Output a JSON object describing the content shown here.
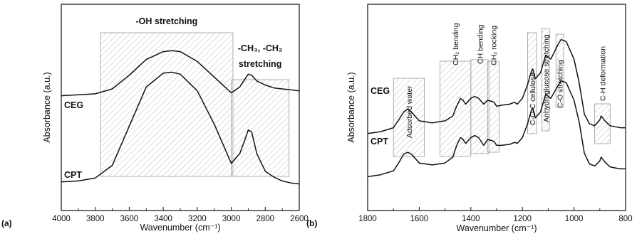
{
  "panel_labels": {
    "a": "(a)",
    "b": "(b)"
  },
  "chart_data": [
    {
      "type": "line",
      "panel": "(a)",
      "xlabel": "Wavenumber (cm⁻¹)",
      "ylabel": "Absorbance (a.u.)",
      "xlim": [
        4000,
        2600
      ],
      "x_reversed": true,
      "x_ticks": [
        "4000",
        "3800",
        "3600",
        "3400",
        "3200",
        "3000",
        "2800",
        "2600"
      ],
      "y_ticks": false,
      "series": [
        {
          "name": "CEG",
          "x": [
            4000,
            3900,
            3800,
            3700,
            3600,
            3500,
            3400,
            3350,
            3300,
            3200,
            3100,
            3000,
            2950,
            2920,
            2900,
            2880,
            2850,
            2800,
            2750,
            2700,
            2650,
            2600
          ],
          "y": [
            0.535,
            0.54,
            0.545,
            0.57,
            0.64,
            0.72,
            0.76,
            0.765,
            0.76,
            0.71,
            0.63,
            0.55,
            0.58,
            0.62,
            0.645,
            0.64,
            0.61,
            0.59,
            0.575,
            0.57,
            0.565,
            0.56
          ]
        },
        {
          "name": "CPT",
          "x": [
            4000,
            3900,
            3800,
            3700,
            3600,
            3500,
            3400,
            3350,
            3300,
            3200,
            3100,
            3000,
            2950,
            2920,
            2900,
            2880,
            2850,
            2800,
            2750,
            2700,
            2650,
            2600
          ],
          "y": [
            0.095,
            0.1,
            0.115,
            0.18,
            0.38,
            0.58,
            0.65,
            0.655,
            0.645,
            0.56,
            0.39,
            0.19,
            0.24,
            0.31,
            0.36,
            0.35,
            0.24,
            0.15,
            0.12,
            0.1,
            0.09,
            0.085
          ]
        }
      ],
      "bands": [
        {
          "label": "-OH stretching",
          "from": 3770,
          "to": 2990
        },
        {
          "label": "-CH₃, -CH₂ stretching",
          "from": 3000,
          "to": 2660
        }
      ]
    },
    {
      "type": "line",
      "panel": "(b)",
      "xlabel": "Wavenumber (cm⁻¹)",
      "ylabel": "Absorbance (a.u.)",
      "xlim": [
        1800,
        800
      ],
      "x_reversed": true,
      "x_ticks": [
        "1800",
        "1600",
        "1400",
        "1200",
        "1000",
        "800"
      ],
      "y_ticks": false,
      "series": [
        {
          "name": "CEG",
          "x": [
            1800,
            1750,
            1700,
            1680,
            1660,
            1645,
            1630,
            1600,
            1550,
            1500,
            1470,
            1455,
            1440,
            1430,
            1420,
            1400,
            1385,
            1370,
            1350,
            1335,
            1320,
            1310,
            1300,
            1280,
            1250,
            1230,
            1220,
            1200,
            1180,
            1165,
            1160,
            1150,
            1130,
            1110,
            1090,
            1060,
            1050,
            1030,
            1000,
            980,
            960,
            940,
            920,
            900,
            895,
            880,
            860,
            840,
            820,
            800
          ],
          "y": [
            0.32,
            0.33,
            0.35,
            0.39,
            0.43,
            0.445,
            0.43,
            0.385,
            0.375,
            0.385,
            0.41,
            0.46,
            0.5,
            0.49,
            0.47,
            0.5,
            0.51,
            0.5,
            0.47,
            0.49,
            0.485,
            0.48,
            0.46,
            0.465,
            0.47,
            0.48,
            0.47,
            0.5,
            0.57,
            0.64,
            0.65,
            0.6,
            0.63,
            0.72,
            0.7,
            0.78,
            0.8,
            0.79,
            0.7,
            0.58,
            0.42,
            0.37,
            0.36,
            0.39,
            0.41,
            0.385,
            0.36,
            0.355,
            0.35,
            0.35
          ]
        },
        {
          "name": "CPT",
          "x": [
            1800,
            1750,
            1700,
            1680,
            1660,
            1645,
            1630,
            1600,
            1550,
            1500,
            1470,
            1455,
            1440,
            1430,
            1420,
            1400,
            1385,
            1370,
            1350,
            1335,
            1320,
            1310,
            1300,
            1280,
            1250,
            1230,
            1220,
            1200,
            1180,
            1165,
            1160,
            1150,
            1130,
            1110,
            1090,
            1060,
            1050,
            1030,
            1000,
            980,
            960,
            940,
            920,
            900,
            895,
            880,
            860,
            840,
            820,
            800
          ],
          "y": [
            0.1,
            0.11,
            0.13,
            0.17,
            0.215,
            0.225,
            0.215,
            0.17,
            0.16,
            0.17,
            0.2,
            0.26,
            0.3,
            0.29,
            0.27,
            0.3,
            0.31,
            0.3,
            0.26,
            0.29,
            0.285,
            0.28,
            0.26,
            0.26,
            0.265,
            0.275,
            0.27,
            0.3,
            0.37,
            0.44,
            0.45,
            0.4,
            0.43,
            0.52,
            0.5,
            0.57,
            0.59,
            0.58,
            0.49,
            0.38,
            0.22,
            0.165,
            0.155,
            0.18,
            0.2,
            0.175,
            0.15,
            0.145,
            0.14,
            0.14
          ]
        }
      ],
      "bands": [
        {
          "label": "Adsorbed water",
          "from": 1700,
          "to": 1580,
          "orient": "vertical"
        },
        {
          "label": "CH₂ bending",
          "from": 1520,
          "to": 1400,
          "orient": "vertical"
        },
        {
          "label": "CH bending",
          "from": 1400,
          "to": 1330,
          "orient": "vertical"
        },
        {
          "label": "CH₂ rocking",
          "from": 1335,
          "to": 1290,
          "orient": "vertical"
        },
        {
          "label": "C-O-C cellulose",
          "from": 1180,
          "to": 1145,
          "orient": "vertical"
        },
        {
          "label": "Anhydroglucose stretching",
          "from": 1125,
          "to": 1095,
          "orient": "vertical"
        },
        {
          "label": "C-O stretching",
          "from": 1070,
          "to": 1040,
          "orient": "vertical"
        },
        {
          "label": "C-H deformation",
          "from": 920,
          "to": 860,
          "orient": "vertical"
        }
      ]
    }
  ]
}
